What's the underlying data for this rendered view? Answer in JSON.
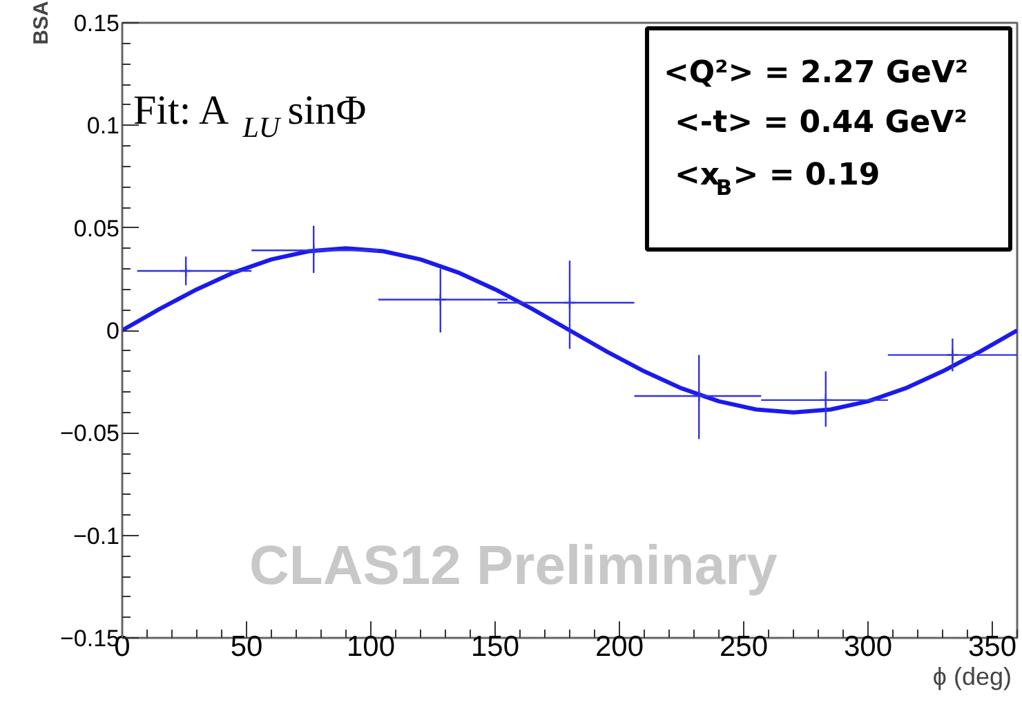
{
  "chart_data": {
    "type": "scatter",
    "xlabel": "ϕ (deg)",
    "ylabel": "BSA",
    "xlim": [
      0,
      360
    ],
    "xticks": [
      0,
      50,
      100,
      150,
      200,
      250,
      300,
      350
    ],
    "ylim": [
      -0.15,
      0.15
    ],
    "yticks": [
      {
        "value": -0.15,
        "label": "−0.15"
      },
      {
        "value": -0.1,
        "label": "−0.1"
      },
      {
        "value": -0.05,
        "label": "−0.05"
      },
      0,
      0.05,
      0.1,
      0.15
    ],
    "grid": false,
    "series": [
      {
        "color": "#3333dd",
        "marker": "cross",
        "x": [
          25.6,
          77,
          128,
          180,
          232,
          283,
          334
        ],
        "values": [
          0.029,
          0.039,
          0.015,
          0.0135,
          -0.032,
          -0.034,
          -0.012
        ],
        "errors": [
          [
            0.022,
            0.036
          ],
          [
            0.028,
            0.051
          ],
          [
            -0.001,
            0.03
          ],
          [
            -0.009,
            0.034
          ],
          [
            -0.053,
            -0.012
          ],
          [
            -0.047,
            -0.02
          ],
          [
            -0.02,
            -0.004
          ]
        ],
        "xerrors": [
          [
            6,
            52
          ],
          [
            52,
            103
          ],
          [
            103,
            155
          ],
          [
            151,
            206
          ],
          [
            206,
            257
          ],
          [
            257,
            308
          ],
          [
            308,
            360
          ]
        ]
      },
      {
        "type": "line",
        "color": "#1a1aee",
        "line_style": "solid",
        "x": [
          0,
          15,
          30,
          45,
          60,
          75,
          90,
          105,
          120,
          135,
          150,
          165,
          180,
          195,
          210,
          225,
          240,
          255,
          270,
          285,
          300,
          315,
          330,
          345,
          360
        ],
        "values": [
          0.0,
          0.0104,
          0.02,
          0.0283,
          0.0346,
          0.0386,
          0.04,
          0.0386,
          0.0346,
          0.0283,
          0.02,
          0.0104,
          0.0,
          -0.0104,
          -0.02,
          -0.0283,
          -0.0346,
          -0.0386,
          -0.04,
          -0.0386,
          -0.0346,
          -0.0283,
          -0.02,
          -0.0104,
          0.0
        ]
      }
    ],
    "annotations": [
      "Fit: A$_{LU}$ sinΦ",
      "<Q²> = 2.27 GeV²",
      "<-t> = 0.44 GeV²",
      "<x$_{B}$> = 0.19",
      "CLAS12 Preliminary"
    ]
  }
}
